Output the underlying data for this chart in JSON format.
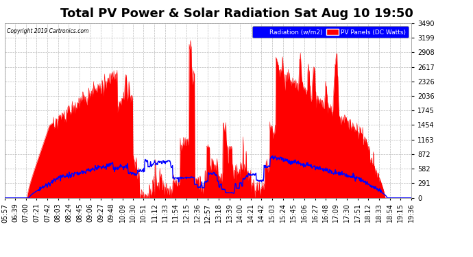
{
  "title": "Total PV Power & Solar Radiation Sat Aug 10 19:50",
  "copyright": "Copyright 2019 Cartronics.com",
  "legend_radiation": "Radiation (w/m2)",
  "legend_pv": "PV Panels (DC Watts)",
  "bg_color": "#ffffff",
  "plot_bg_color": "#ffffff",
  "grid_color": "#aaaaaa",
  "y_min": 0.0,
  "y_max": 3489.5,
  "y_ticks": [
    0.0,
    290.8,
    581.6,
    872.4,
    1163.2,
    1454.0,
    1744.8,
    2035.5,
    2326.3,
    2617.1,
    2907.9,
    3198.7,
    3489.5
  ],
  "radiation_color": "#0000ff",
  "pv_color": "#ff0000",
  "pv_fill_color": "#ff0000",
  "time_labels": [
    "05:57",
    "06:39",
    "07:00",
    "07:21",
    "07:42",
    "08:03",
    "08:24",
    "08:45",
    "09:06",
    "09:27",
    "09:48",
    "10:09",
    "10:30",
    "10:51",
    "11:12",
    "11:33",
    "11:54",
    "12:15",
    "12:36",
    "12:57",
    "13:18",
    "13:39",
    "14:00",
    "14:21",
    "14:42",
    "15:03",
    "15:24",
    "15:45",
    "16:06",
    "16:27",
    "16:48",
    "17:09",
    "17:30",
    "17:51",
    "18:12",
    "18:33",
    "18:54",
    "19:15",
    "19:36"
  ],
  "title_fontsize": 13,
  "tick_fontsize": 7,
  "label_fontsize": 7
}
